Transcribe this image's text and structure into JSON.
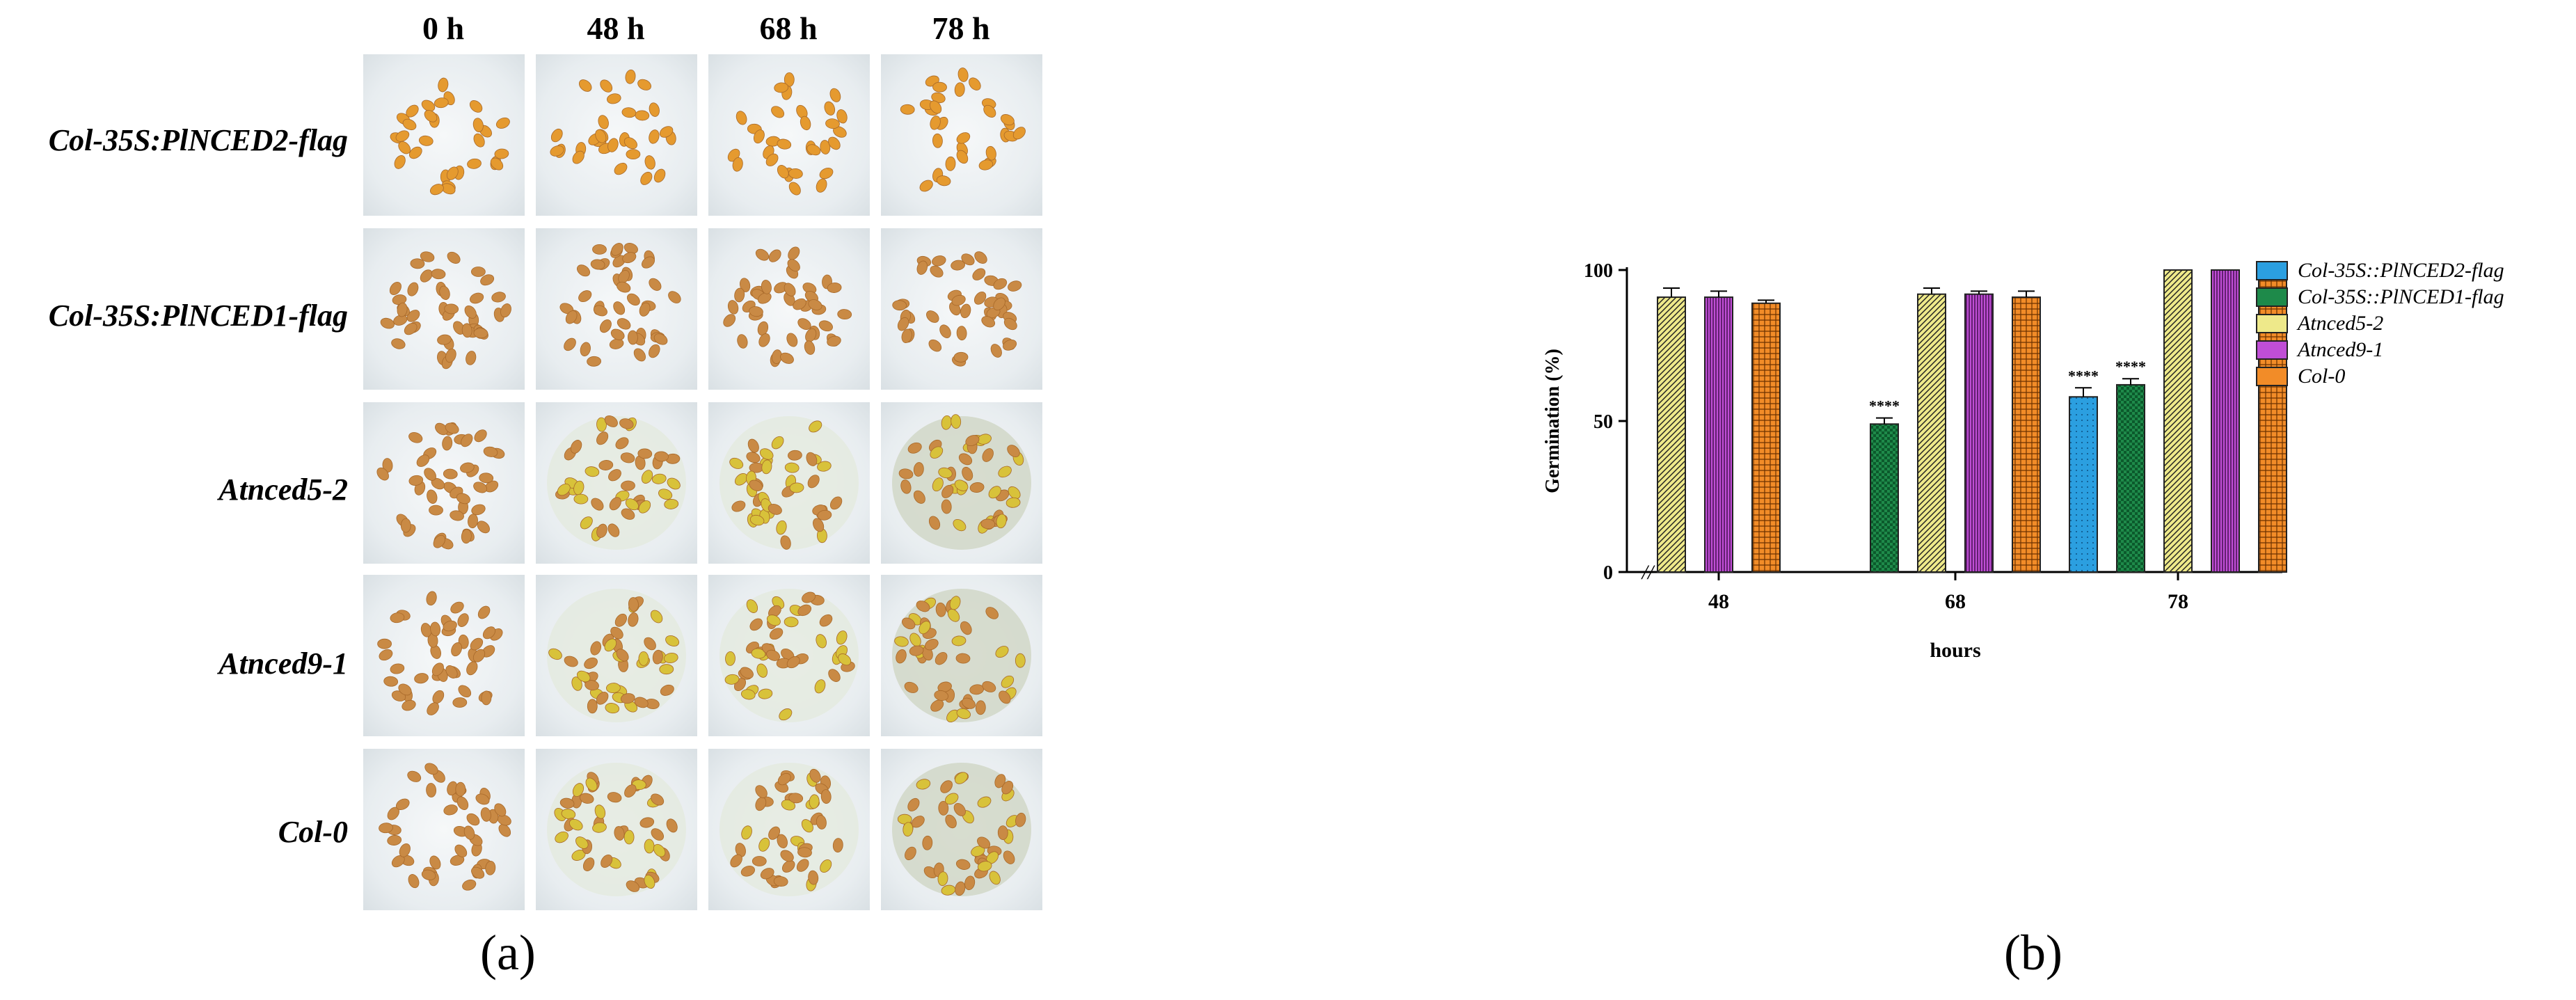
{
  "panel_a": {
    "letter": "(a)",
    "columns": [
      "0 h",
      "48 h",
      "68 h",
      "78 h"
    ],
    "rows": [
      "Col-35S:PlNCED2-flag",
      "Col-35S:PlNCED1-flag",
      "Atnced5-2",
      "Atnced9-1",
      "Col-0"
    ]
  },
  "panel_b": {
    "letter": "(b)"
  },
  "chart_data": {
    "type": "bar",
    "categories": [
      "48",
      "68",
      "78"
    ],
    "xlabel": "hours",
    "ylabel": "Germination (%)",
    "ylim": [
      0,
      100
    ],
    "yticks": [
      0,
      50,
      100
    ],
    "axis_break": "//",
    "legend_position": "right",
    "grid": false,
    "series": [
      {
        "name": "Col-35S::PlNCED2-flag",
        "values": [
          null,
          null,
          58
        ],
        "error": [
          null,
          null,
          3
        ],
        "annotations": [
          null,
          null,
          "****"
        ],
        "color": "#2b9fe0",
        "pattern": "dots"
      },
      {
        "name": "Col-35S::PlNCED1-flag",
        "values": [
          null,
          49,
          62
        ],
        "error": [
          null,
          2,
          2
        ],
        "annotations": [
          null,
          "****",
          "****"
        ],
        "color": "#1e8a4a",
        "pattern": "checker"
      },
      {
        "name": "Atnced5-2",
        "values": [
          91,
          92,
          100
        ],
        "error": [
          3,
          2,
          0
        ],
        "annotations": [
          null,
          null,
          null
        ],
        "color": "#eee98a",
        "pattern": "diagonal"
      },
      {
        "name": "Atnced9-1",
        "values": [
          91,
          92,
          100
        ],
        "error": [
          2,
          1,
          0
        ],
        "annotations": [
          null,
          null,
          null
        ],
        "color": "#c04ed6",
        "pattern": "vertical"
      },
      {
        "name": "Col-0",
        "values": [
          89,
          91,
          100
        ],
        "error": [
          1,
          2,
          0
        ],
        "annotations": [
          null,
          null,
          null
        ],
        "color": "#f28c28",
        "pattern": "grid"
      }
    ]
  }
}
